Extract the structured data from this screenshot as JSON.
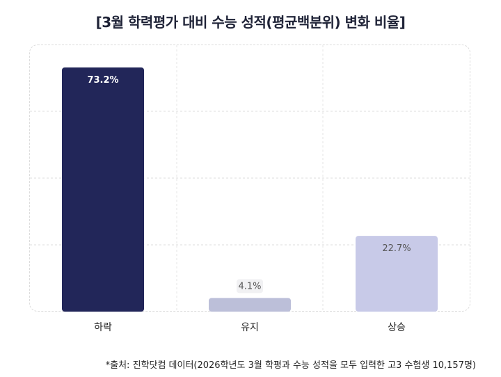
{
  "title": "[3월 학력평가 대비 수능 성적(평균백분위) 변화 비율]",
  "source": "*출처: 진학닷컴 데이터(2026학년도 3월 학평과 수능 성적을 모두 입력한 고3 수험생 10,157명)",
  "chart_data": {
    "type": "bar",
    "title": "[3월 학력평가 대비 수능 성적(평균백분위) 변화 비율]",
    "categories": [
      "하락",
      "유지",
      "상승"
    ],
    "values": [
      73.2,
      4.1,
      22.7
    ],
    "value_labels": [
      "73.2%",
      "4.1%",
      "22.7%"
    ],
    "colors": [
      "#222659",
      "#bcbfd9",
      "#c8cae8"
    ],
    "label_colors": [
      "#ffffff",
      "#555555",
      "#555555"
    ],
    "ylim": [
      0,
      80
    ],
    "grid": true,
    "xlabel": "",
    "ylabel": ""
  }
}
